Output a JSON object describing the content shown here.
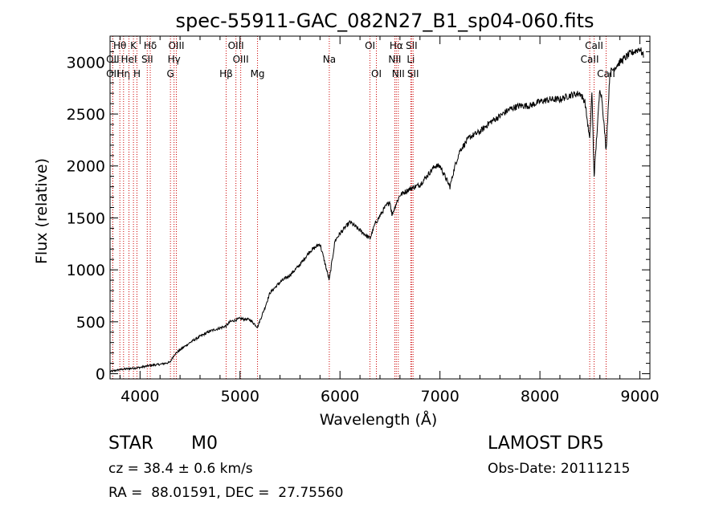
{
  "chart_data": {
    "type": "line",
    "title": "spec-55911-GAC_082N27_B1_sp04-060.fits",
    "xlabel": "Wavelength (Å)",
    "ylabel": "Flux (relative)",
    "xlim": [
      3700,
      9100
    ],
    "ylim": [
      -50,
      3250
    ],
    "xticks": [
      4000,
      5000,
      6000,
      7000,
      8000,
      9000
    ],
    "yticks": [
      0,
      500,
      1000,
      1500,
      2000,
      2500,
      3000
    ],
    "grid": false,
    "series": [
      {
        "x": [
          3700,
          3800,
          3900,
          4000,
          4100,
          4200,
          4300,
          4340,
          4400,
          4500,
          4600,
          4700,
          4800,
          4861,
          4900,
          5000,
          5100,
          5175,
          5250,
          5300,
          5400,
          5500,
          5600,
          5700,
          5800,
          5893,
          5950,
          6000,
          6100,
          6200,
          6300,
          6350,
          6400,
          6450,
          6500,
          6520,
          6563,
          6600,
          6700,
          6800,
          6900,
          6950,
          7000,
          7050,
          7100,
          7150,
          7200,
          7300,
          7400,
          7500,
          7600,
          7700,
          7800,
          7900,
          8000,
          8100,
          8200,
          8300,
          8400,
          8450,
          8498,
          8520,
          8542,
          8600,
          8620,
          8662,
          8700,
          8800,
          8900,
          9000,
          9040
        ],
        "y": [
          20,
          40,
          50,
          60,
          80,
          90,
          110,
          180,
          230,
          300,
          360,
          410,
          440,
          460,
          500,
          530,
          520,
          450,
          640,
          780,
          880,
          950,
          1050,
          1180,
          1250,
          900,
          1280,
          1350,
          1460,
          1380,
          1300,
          1440,
          1520,
          1600,
          1660,
          1530,
          1640,
          1720,
          1780,
          1820,
          1940,
          2000,
          2000,
          1900,
          1800,
          2000,
          2150,
          2280,
          2330,
          2420,
          2480,
          2550,
          2580,
          2580,
          2620,
          2640,
          2640,
          2680,
          2700,
          2620,
          2250,
          2720,
          1900,
          2750,
          2650,
          2150,
          2900,
          3000,
          3080,
          3130,
          3050
        ],
        "color": "#000000"
      }
    ],
    "line_markers": [
      {
        "label": "Hθ",
        "x": 3798,
        "row": 0
      },
      {
        "label": "OII",
        "x": 3727,
        "row": 1
      },
      {
        "label": "OII",
        "x": 3727,
        "row": 2
      },
      {
        "label": "Hη",
        "x": 3835,
        "row": 2
      },
      {
        "label": "HeI",
        "x": 3889,
        "row": 1
      },
      {
        "label": "K",
        "x": 3934,
        "row": 0
      },
      {
        "label": "H",
        "x": 3969,
        "row": 2
      },
      {
        "label": "Hδ",
        "x": 4102,
        "row": 0
      },
      {
        "label": "SII",
        "x": 4072,
        "row": 1
      },
      {
        "label": "OIII",
        "x": 4363,
        "row": 0
      },
      {
        "label": "Hγ",
        "x": 4340,
        "row": 1
      },
      {
        "label": "G",
        "x": 4304,
        "row": 2
      },
      {
        "label": "OIII",
        "x": 4959,
        "row": 0
      },
      {
        "label": "OIII",
        "x": 5007,
        "row": 1
      },
      {
        "label": "Hβ",
        "x": 4861,
        "row": 2
      },
      {
        "label": "Mg",
        "x": 5175,
        "row": 2
      },
      {
        "label": "Na",
        "x": 5893,
        "row": 1
      },
      {
        "label": "OI",
        "x": 6300,
        "row": 0
      },
      {
        "label": "OI",
        "x": 6364,
        "row": 2
      },
      {
        "label": "Hα",
        "x": 6563,
        "row": 0
      },
      {
        "label": "NII",
        "x": 6548,
        "row": 1
      },
      {
        "label": "NII",
        "x": 6583,
        "row": 2
      },
      {
        "label": "SII",
        "x": 6716,
        "row": 0
      },
      {
        "label": "Li",
        "x": 6708,
        "row": 1
      },
      {
        "label": "SII",
        "x": 6731,
        "row": 2
      },
      {
        "label": "CaII",
        "x": 8542,
        "row": 0
      },
      {
        "label": "CaII",
        "x": 8498,
        "row": 1
      },
      {
        "label": "CaII",
        "x": 8662,
        "row": 2
      }
    ]
  },
  "info": {
    "object_class": "STAR",
    "subclass": "M0",
    "survey": "LAMOST DR5",
    "cz": "cz = 38.4 ± 0.6 km/s",
    "obs_date": "Obs-Date: 20111215",
    "coords": "RA =  88.01591, DEC =  27.75560"
  }
}
